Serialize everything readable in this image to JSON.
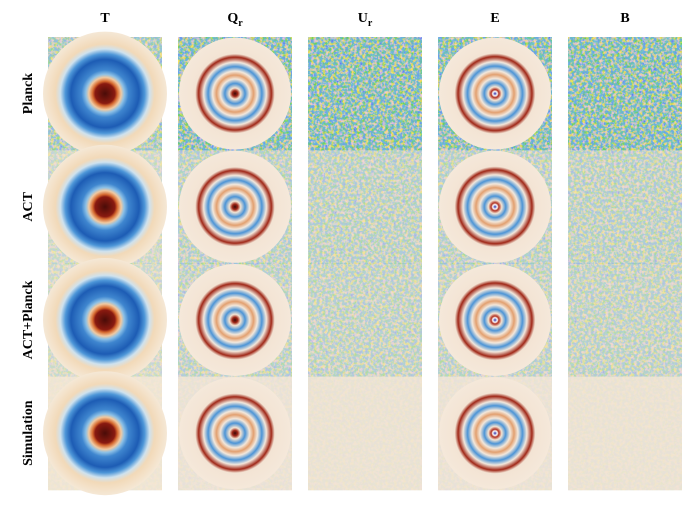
{
  "columns": [
    {
      "label": "T"
    },
    {
      "label": "Q",
      "subscript": "r"
    },
    {
      "label": "U",
      "subscript": "r"
    },
    {
      "label": "E"
    },
    {
      "label": "B"
    }
  ],
  "rows": [
    {
      "label": "Planck"
    },
    {
      "label": "ACT"
    },
    {
      "label": "ACT+Planck"
    },
    {
      "label": "Simulation"
    }
  ]
}
